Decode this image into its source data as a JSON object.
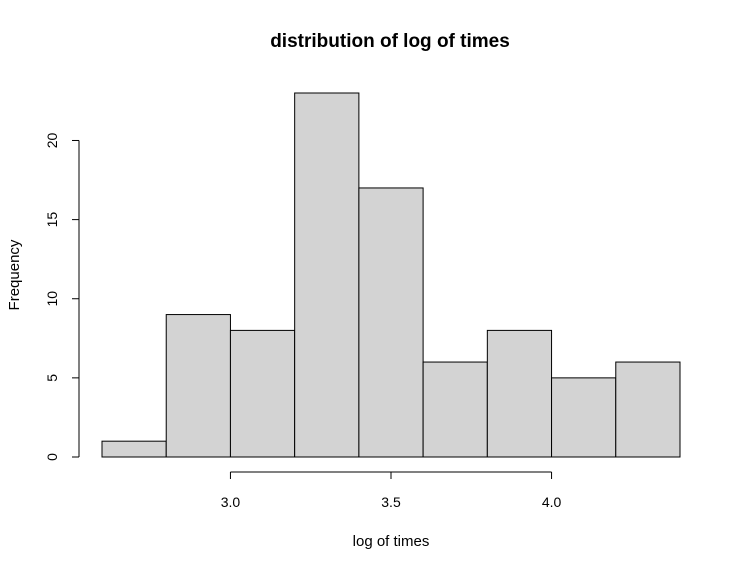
{
  "chart_data": {
    "type": "bar",
    "subtype": "histogram",
    "title": "distribution of log of times",
    "xlabel": "log of times",
    "ylabel": "Frequency",
    "bin_edges": [
      2.6,
      2.8,
      3.0,
      3.2,
      3.4,
      3.6,
      3.8,
      4.0,
      4.2,
      4.4
    ],
    "values": [
      1,
      9,
      8,
      23,
      17,
      6,
      8,
      5,
      6
    ],
    "xlim": [
      2.6,
      4.4
    ],
    "ylim": [
      0,
      23
    ],
    "x_ticks": [
      3.0,
      3.5,
      4.0
    ],
    "x_tick_labels": [
      "3.0",
      "3.5",
      "4.0"
    ],
    "y_ticks": [
      0,
      5,
      10,
      15,
      20
    ],
    "y_tick_labels": [
      "0",
      "5",
      "10",
      "15",
      "20"
    ],
    "bar_color": "#d3d3d3",
    "grid": false,
    "legend": "none"
  }
}
